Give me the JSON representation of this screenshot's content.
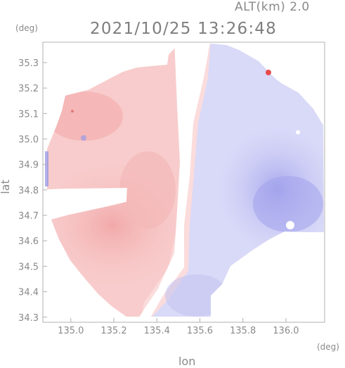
{
  "header": {
    "altitude_label": "ALT(km) 2.0",
    "timestamp": "2021/10/25 13:26:48"
  },
  "axes": {
    "y_unit": "(deg)",
    "x_unit": "(deg)",
    "x_label": "lon",
    "y_label": "lat",
    "x_ticks": [
      "135.0",
      "135.2",
      "135.4",
      "135.6",
      "135.8",
      "136.0"
    ],
    "y_ticks": [
      "35.3",
      "35.2",
      "35.1",
      "35.0",
      "34.9",
      "34.8",
      "34.7",
      "34.6",
      "34.5",
      "34.4",
      "34.3"
    ]
  },
  "chart_data": {
    "type": "heatmap",
    "title": "2021/10/25 13:26:48",
    "xlabel": "lon",
    "ylabel": "lat",
    "xlim": [
      134.87,
      136.18
    ],
    "ylim": [
      34.28,
      35.38
    ],
    "x_ticks": [
      135.0,
      135.2,
      135.4,
      135.6,
      135.8,
      136.0
    ],
    "y_ticks": [
      34.3,
      34.4,
      34.5,
      34.6,
      34.7,
      34.8,
      34.9,
      35.0,
      35.1,
      35.2,
      35.3
    ],
    "grid": false,
    "colors": {
      "positive": "#f2a0a0",
      "near_zero": "#ffffff",
      "negative": "#a8a8ee"
    }
  }
}
